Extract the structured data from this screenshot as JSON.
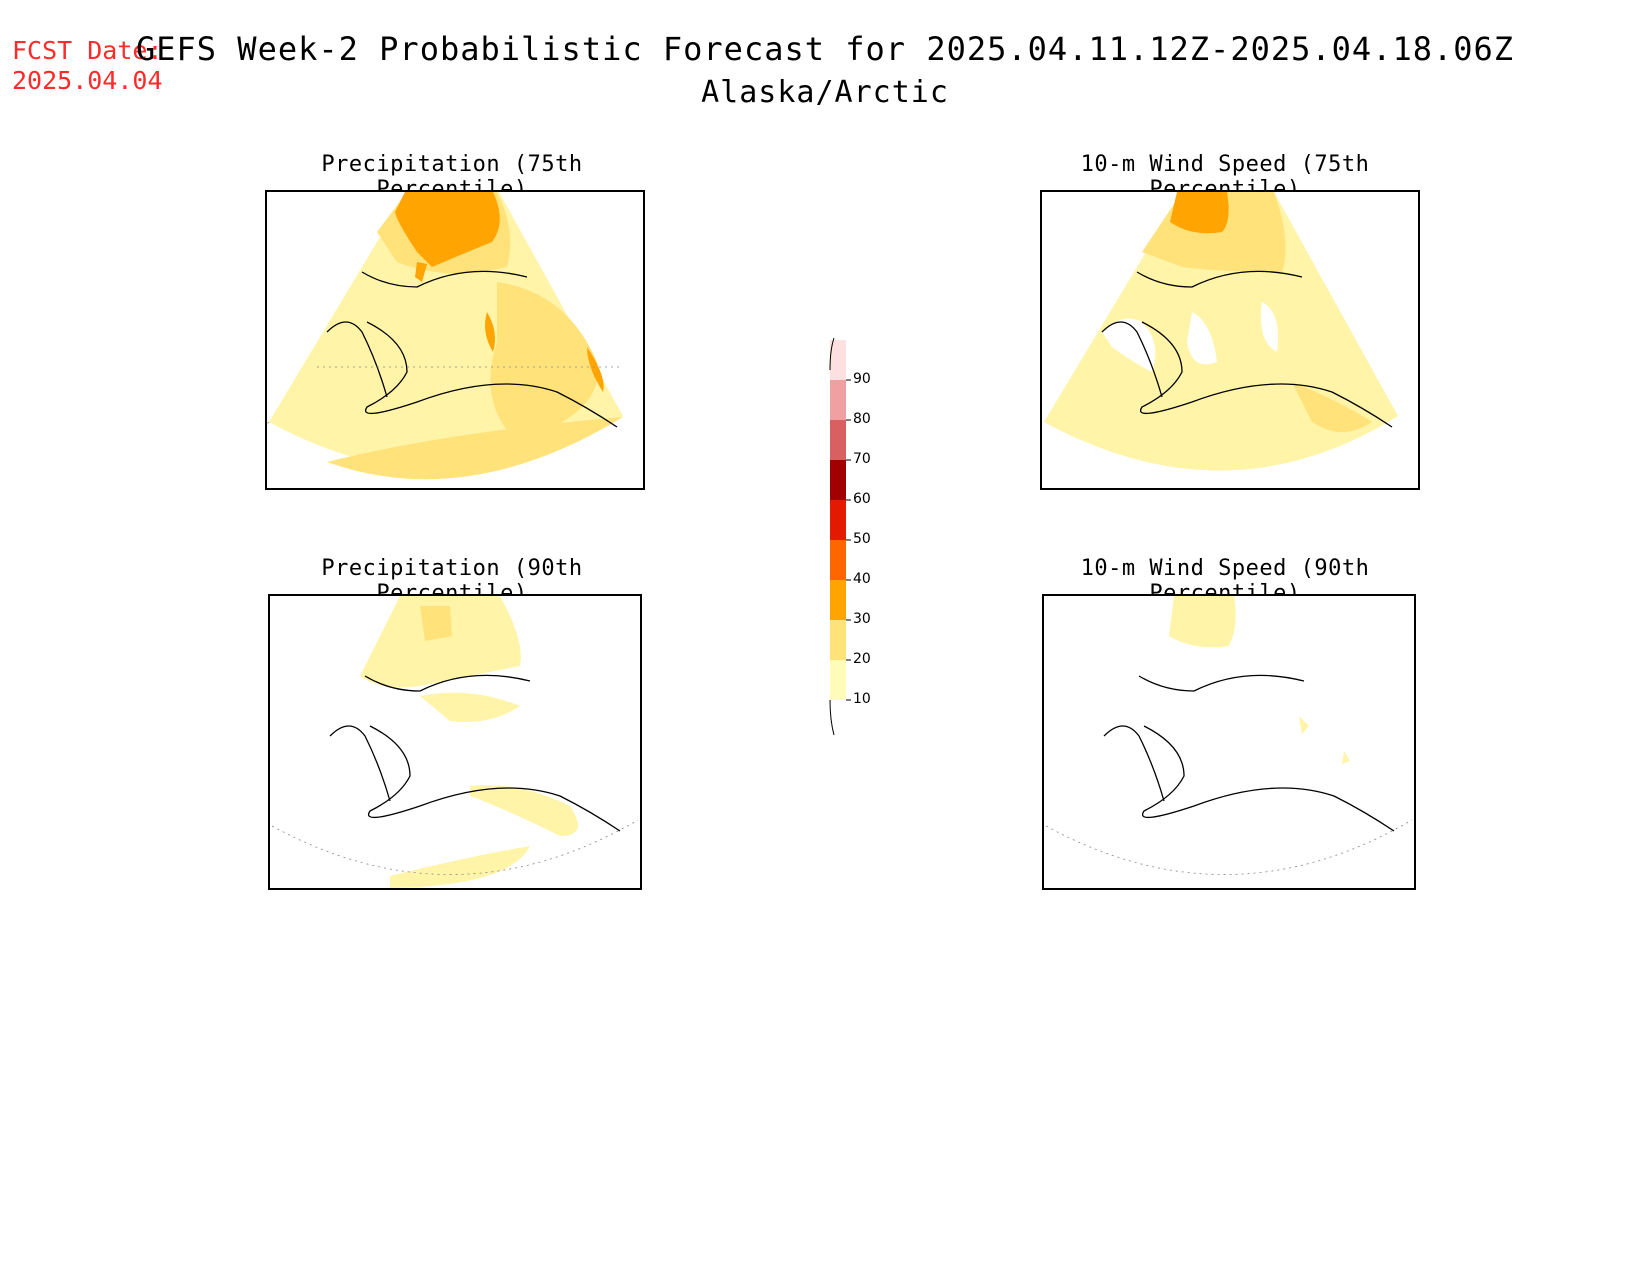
{
  "header": {
    "fcst_label": "FCST Date:",
    "fcst_date": "2025.04.04",
    "title": "GEFS Week-2 Probabilistic Forecast for 2025.04.11.12Z-2025.04.18.06Z",
    "subtitle": "Alaska/Arctic"
  },
  "panels": [
    {
      "title": "Precipitation (75th Percentile)",
      "level": "p75"
    },
    {
      "title": "10-m Wind Speed (75th Percentile)",
      "level": "w75"
    },
    {
      "title": "Precipitation (90th Percentile)",
      "level": "p90"
    },
    {
      "title": "10-m Wind Speed (90th Percentile)",
      "level": "w90"
    }
  ],
  "colorbar": {
    "levels": [
      "10",
      "20",
      "30",
      "40",
      "50",
      "60",
      "70",
      "80",
      "90"
    ],
    "colors": [
      "#fffbb8",
      "#ffe27a",
      "#ffa400",
      "#ff6600",
      "#e31a00",
      "#a10000",
      "#d96060",
      "#f0a0a0",
      "#ffe0e0"
    ]
  }
}
